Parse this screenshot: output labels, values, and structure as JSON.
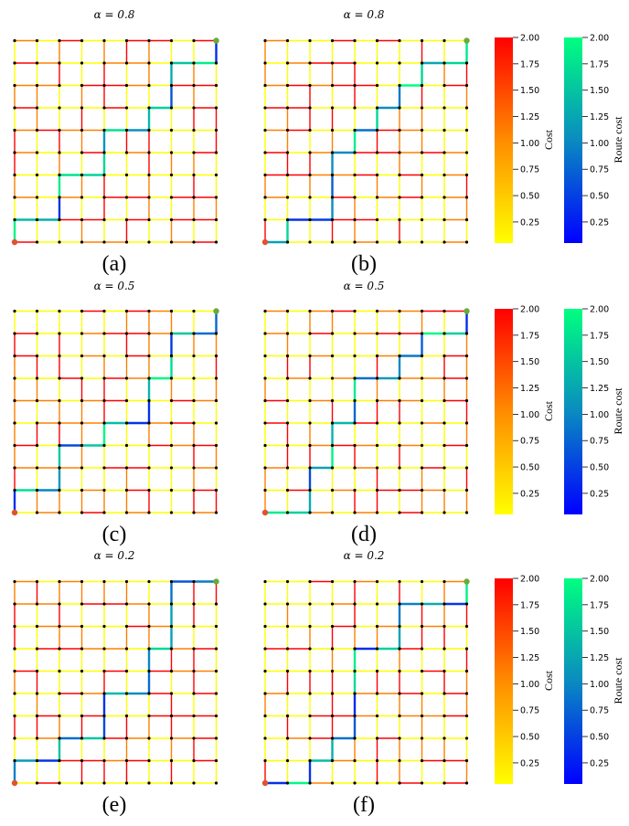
{
  "colors": {
    "cost_low": "#ffff00",
    "cost_mid": "#ff8000",
    "cost_high": "#ff0000",
    "route_low": "#0000ff",
    "route_high": "#00ff80",
    "node": "#000000",
    "start_node": "#e0522e",
    "goal_node": "#6aaa3a"
  },
  "panels": [
    {
      "title": "α = 0.8",
      "label": "(a)"
    },
    {
      "title": "α = 0.8",
      "label": "(b)"
    },
    {
      "title": "α = 0.5",
      "label": "(c)"
    },
    {
      "title": "α = 0.5",
      "label": "(d)"
    },
    {
      "title": "α = 0.2",
      "label": "(e)"
    },
    {
      "title": "α = 0.2",
      "label": "(f)"
    }
  ],
  "colorbars": {
    "cost_label": "Cost",
    "route_label": "Route cost",
    "ticks": [
      "2.00",
      "1.75",
      "1.50",
      "1.25",
      "1.00",
      "0.75",
      "0.50",
      "0.25"
    ],
    "tick_values": [
      2.0,
      1.75,
      1.5,
      1.25,
      1.0,
      0.75,
      0.5,
      0.25
    ],
    "range": [
      0.05,
      2.0
    ]
  },
  "grid": {
    "nodes_per_side": 10
  },
  "routes": {
    "a": [
      [
        0,
        0
      ],
      [
        0,
        1
      ],
      [
        1,
        1
      ],
      [
        2,
        1
      ],
      [
        2,
        2
      ],
      [
        2,
        3
      ],
      [
        3,
        3
      ],
      [
        4,
        3
      ],
      [
        4,
        4
      ],
      [
        4,
        5
      ],
      [
        5,
        5
      ],
      [
        6,
        5
      ],
      [
        6,
        6
      ],
      [
        7,
        6
      ],
      [
        7,
        7
      ],
      [
        7,
        8
      ],
      [
        8,
        8
      ],
      [
        9,
        8
      ],
      [
        9,
        9
      ]
    ],
    "b": [
      [
        0,
        0
      ],
      [
        1,
        0
      ],
      [
        1,
        1
      ],
      [
        2,
        1
      ],
      [
        3,
        1
      ],
      [
        3,
        2
      ],
      [
        3,
        3
      ],
      [
        3,
        4
      ],
      [
        4,
        4
      ],
      [
        4,
        5
      ],
      [
        5,
        5
      ],
      [
        5,
        6
      ],
      [
        6,
        6
      ],
      [
        6,
        7
      ],
      [
        7,
        7
      ],
      [
        7,
        8
      ],
      [
        8,
        8
      ],
      [
        9,
        8
      ],
      [
        9,
        9
      ]
    ],
    "c": [
      [
        0,
        0
      ],
      [
        0,
        1
      ],
      [
        1,
        1
      ],
      [
        2,
        1
      ],
      [
        2,
        2
      ],
      [
        2,
        3
      ],
      [
        3,
        3
      ],
      [
        4,
        3
      ],
      [
        4,
        4
      ],
      [
        5,
        4
      ],
      [
        6,
        4
      ],
      [
        6,
        5
      ],
      [
        6,
        6
      ],
      [
        7,
        6
      ],
      [
        7,
        7
      ],
      [
        7,
        8
      ],
      [
        8,
        8
      ],
      [
        9,
        8
      ],
      [
        9,
        9
      ]
    ],
    "d": [
      [
        0,
        0
      ],
      [
        1,
        0
      ],
      [
        2,
        0
      ],
      [
        2,
        1
      ],
      [
        2,
        2
      ],
      [
        3,
        2
      ],
      [
        3,
        3
      ],
      [
        3,
        4
      ],
      [
        4,
        4
      ],
      [
        4,
        5
      ],
      [
        4,
        6
      ],
      [
        5,
        6
      ],
      [
        6,
        6
      ],
      [
        6,
        7
      ],
      [
        7,
        7
      ],
      [
        7,
        8
      ],
      [
        8,
        8
      ],
      [
        9,
        8
      ],
      [
        9,
        9
      ]
    ],
    "e": [
      [
        0,
        0
      ],
      [
        0,
        1
      ],
      [
        1,
        1
      ],
      [
        2,
        1
      ],
      [
        2,
        2
      ],
      [
        3,
        2
      ],
      [
        4,
        2
      ],
      [
        4,
        3
      ],
      [
        4,
        4
      ],
      [
        5,
        4
      ],
      [
        6,
        4
      ],
      [
        6,
        5
      ],
      [
        6,
        6
      ],
      [
        7,
        6
      ],
      [
        7,
        7
      ],
      [
        7,
        8
      ],
      [
        7,
        9
      ],
      [
        8,
        9
      ],
      [
        9,
        9
      ]
    ],
    "f": [
      [
        0,
        0
      ],
      [
        1,
        0
      ],
      [
        2,
        0
      ],
      [
        2,
        1
      ],
      [
        3,
        1
      ],
      [
        3,
        2
      ],
      [
        4,
        2
      ],
      [
        4,
        3
      ],
      [
        4,
        4
      ],
      [
        4,
        5
      ],
      [
        4,
        6
      ],
      [
        5,
        6
      ],
      [
        6,
        6
      ],
      [
        6,
        7
      ],
      [
        6,
        8
      ],
      [
        7,
        8
      ],
      [
        8,
        8
      ],
      [
        9,
        8
      ],
      [
        9,
        9
      ]
    ]
  }
}
